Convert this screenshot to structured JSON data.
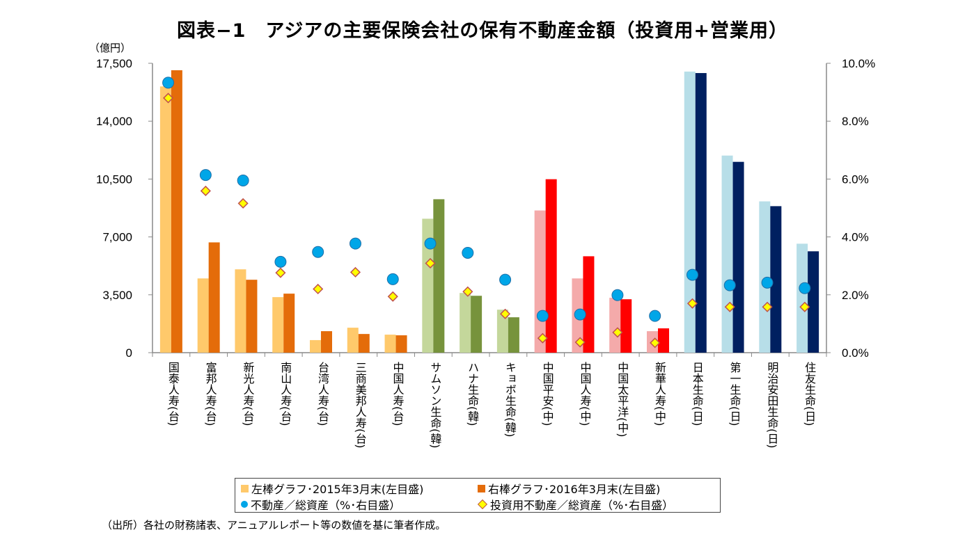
{
  "chart_data": {
    "type": "bar",
    "title": "図表−1　アジアの主要保険会社の保有不動産金額（投資用+営業用）",
    "ylabel": "（億円）",
    "ylim": [
      0,
      17500
    ],
    "y_ticks": [
      "0",
      "3,500",
      "7,000",
      "10,500",
      "14,000",
      "17,500"
    ],
    "y2lim": [
      0,
      10
    ],
    "y2_ticks": [
      "0.0%",
      "2.0%",
      "4.0%",
      "6.0%",
      "8.0%",
      "10.0%"
    ],
    "grid": false,
    "legend_position": "bottom",
    "categories": [
      "国泰人寿(台)",
      "富邦人寿(台)",
      "新光人寿(台)",
      "南山人寿(台)",
      "台湾人寿(台)",
      "三商美邦人寿(台)",
      "中国人寿(台)",
      "サムソン生命(韓)",
      "ハナ生命(韓)",
      "キョボ生命(韓)",
      "中国平安(中)",
      "中国人寿(中)",
      "中国太平洋(中)",
      "新華人寿(中)",
      "日本生命(日)",
      "第一生命(日)",
      "明治安田生命(日)",
      "住友生命(日)"
    ],
    "series": [
      {
        "name": "左棒グラフ･2015年3月末(左目盛)",
        "axis": "left",
        "type": "bar",
        "values": [
          16100,
          4490,
          5040,
          3360,
          760,
          1510,
          1090,
          8100,
          3610,
          2600,
          8600,
          4490,
          3320,
          1300,
          17000,
          11920,
          9150,
          6590
        ]
      },
      {
        "name": "右棒グラフ･2016年3月末(左目盛)",
        "axis": "left",
        "type": "bar",
        "values": [
          17080,
          6670,
          4410,
          3570,
          1300,
          1130,
          1050,
          9280,
          3440,
          2140,
          10490,
          5830,
          3230,
          1470,
          16910,
          11540,
          8860,
          6130
        ]
      },
      {
        "name": "不動産／総資産（%･右目盛）",
        "axis": "right",
        "type": "scatter",
        "marker": "circle",
        "values": [
          9.33,
          6.14,
          5.95,
          3.14,
          3.48,
          3.77,
          2.54,
          3.77,
          3.45,
          2.52,
          1.27,
          1.32,
          1.99,
          1.27,
          2.69,
          2.33,
          2.42,
          2.23
        ]
      },
      {
        "name": "投資用不動産／総資産（%･右目盛）",
        "axis": "right",
        "type": "scatter",
        "marker": "diamond",
        "values": [
          8.8,
          5.59,
          5.16,
          2.76,
          2.2,
          2.78,
          1.94,
          3.09,
          2.11,
          1.34,
          0.5,
          0.36,
          0.7,
          0.34,
          1.7,
          1.58,
          1.58,
          1.58
        ]
      }
    ],
    "group_colors": {
      "taiwan": {
        "light": "#FFC96B",
        "dark": "#E46C0A"
      },
      "korea": {
        "light": "#C4D79B",
        "dark": "#77933C"
      },
      "china": {
        "light": "#F4AAAA",
        "dark": "#FF0000"
      },
      "japan": {
        "light": "#B7DEE8",
        "dark": "#002060"
      }
    },
    "category_groups": [
      "taiwan",
      "taiwan",
      "taiwan",
      "taiwan",
      "taiwan",
      "taiwan",
      "taiwan",
      "korea",
      "korea",
      "korea",
      "china",
      "china",
      "china",
      "china",
      "japan",
      "japan",
      "japan",
      "japan"
    ],
    "marker_colors": {
      "circle": "#00A6E8",
      "diamond_fill": "#FFFF00",
      "diamond_edge": "#C0504D"
    }
  },
  "source": "（出所）各社の財務諸表、アニュアルレポート等の数値を基に筆者作成。"
}
